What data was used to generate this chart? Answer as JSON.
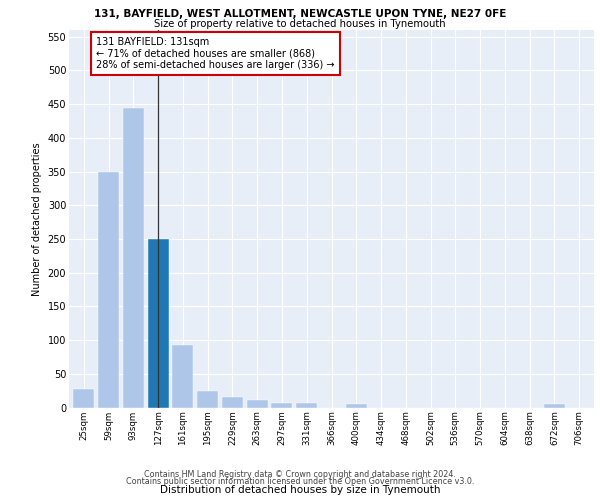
{
  "title_line1": "131, BAYFIELD, WEST ALLOTMENT, NEWCASTLE UPON TYNE, NE27 0FE",
  "title_line2": "Size of property relative to detached houses in Tynemouth",
  "xlabel": "Distribution of detached houses by size in Tynemouth",
  "ylabel": "Number of detached properties",
  "categories": [
    "25sqm",
    "59sqm",
    "93sqm",
    "127sqm",
    "161sqm",
    "195sqm",
    "229sqm",
    "263sqm",
    "297sqm",
    "331sqm",
    "366sqm",
    "400sqm",
    "434sqm",
    "468sqm",
    "502sqm",
    "536sqm",
    "570sqm",
    "604sqm",
    "638sqm",
    "672sqm",
    "706sqm"
  ],
  "values": [
    28,
    350,
    445,
    250,
    93,
    25,
    15,
    11,
    6,
    6,
    0,
    5,
    0,
    0,
    0,
    0,
    0,
    0,
    0,
    5,
    0
  ],
  "bar_color": "#aec6e8",
  "highlight_bar_index": 3,
  "highlight_bar_color": "#1f77b4",
  "annotation_text": "131 BAYFIELD: 131sqm\n← 71% of detached houses are smaller (868)\n28% of semi-detached houses are larger (336) →",
  "annotation_box_color": "#ffffff",
  "annotation_edge_color": "#cc0000",
  "ylim": [
    0,
    560
  ],
  "yticks": [
    0,
    50,
    100,
    150,
    200,
    250,
    300,
    350,
    400,
    450,
    500,
    550
  ],
  "bg_color": "#e8eef8",
  "footer_line1": "Contains HM Land Registry data © Crown copyright and database right 2024.",
  "footer_line2": "Contains public sector information licensed under the Open Government Licence v3.0."
}
